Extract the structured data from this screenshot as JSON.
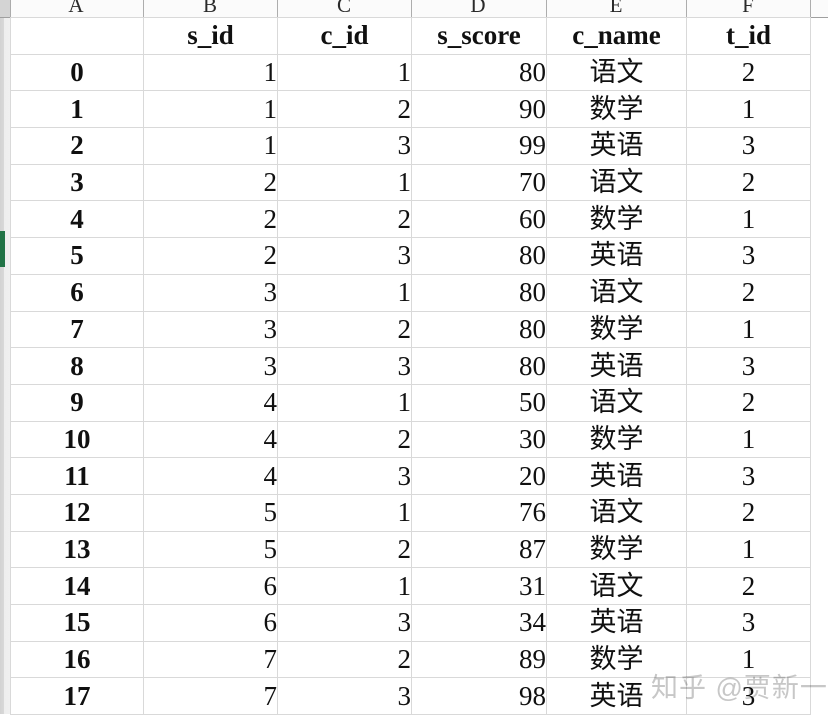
{
  "sheet": {
    "column_letters": [
      "A",
      "B",
      "C",
      "D",
      "E",
      "F"
    ],
    "headers": [
      "",
      "s_id",
      "c_id",
      "s_score",
      "c_name",
      "t_id"
    ],
    "rows": [
      [
        "0",
        "1",
        "1",
        "80",
        "语文",
        "2"
      ],
      [
        "1",
        "1",
        "2",
        "90",
        "数学",
        "1"
      ],
      [
        "2",
        "1",
        "3",
        "99",
        "英语",
        "3"
      ],
      [
        "3",
        "2",
        "1",
        "70",
        "语文",
        "2"
      ],
      [
        "4",
        "2",
        "2",
        "60",
        "数学",
        "1"
      ],
      [
        "5",
        "2",
        "3",
        "80",
        "英语",
        "3"
      ],
      [
        "6",
        "3",
        "1",
        "80",
        "语文",
        "2"
      ],
      [
        "7",
        "3",
        "2",
        "80",
        "数学",
        "1"
      ],
      [
        "8",
        "3",
        "3",
        "80",
        "英语",
        "3"
      ],
      [
        "9",
        "4",
        "1",
        "50",
        "语文",
        "2"
      ],
      [
        "10",
        "4",
        "2",
        "30",
        "数学",
        "1"
      ],
      [
        "11",
        "4",
        "3",
        "20",
        "英语",
        "3"
      ],
      [
        "12",
        "5",
        "1",
        "76",
        "语文",
        "2"
      ],
      [
        "13",
        "5",
        "2",
        "87",
        "数学",
        "1"
      ],
      [
        "14",
        "6",
        "1",
        "31",
        "语文",
        "2"
      ],
      [
        "15",
        "6",
        "3",
        "34",
        "英语",
        "3"
      ],
      [
        "16",
        "7",
        "2",
        "89",
        "数学",
        "1"
      ],
      [
        "17",
        "7",
        "3",
        "98",
        "英语",
        "3"
      ]
    ],
    "selected_row_index": "5"
  },
  "watermark": {
    "text": "知乎 @贾新一"
  },
  "colors": {
    "gridline": "#d9d9d9",
    "table_border": "#000000",
    "selection_green": "#217346",
    "watermark_gray": "#c7c7c7"
  }
}
